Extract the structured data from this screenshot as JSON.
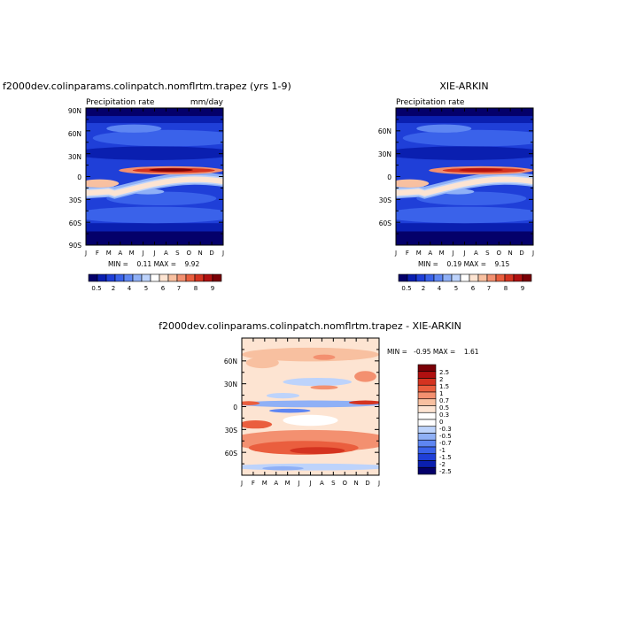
{
  "colors": {
    "abs_scale": [
      "#04006a",
      "#0a1fb0",
      "#1f3fd8",
      "#3a62ea",
      "#5e86f2",
      "#8fb0f6",
      "#bdd3fb",
      "#ffffff",
      "#fde4d2",
      "#f8c0a0",
      "#f39070",
      "#ea5e3e",
      "#d43320",
      "#b01010",
      "#7a0006"
    ],
    "diff_scale": [
      "#04006a",
      "#0a1fb0",
      "#1f3fd8",
      "#3a62ea",
      "#5e86f2",
      "#8fb0f6",
      "#bdd3fb",
      "#ffffff",
      "#ffffff",
      "#fde4d2",
      "#f8c0a0",
      "#f39070",
      "#ea5e3e",
      "#d43320",
      "#b01010",
      "#7a0006"
    ]
  },
  "month_labels": [
    "J",
    "F",
    "M",
    "A",
    "M",
    "J",
    "J",
    "A",
    "S",
    "O",
    "N",
    "D",
    "J"
  ],
  "panel_model": {
    "title": "f2000dev.colinparams.colinpatch.nomflrtm.trapez (yrs 1-9)",
    "left_label": "Precipitation rate",
    "right_label": "mm/day",
    "lat_labels": [
      "90N",
      "60N",
      "30N",
      "0",
      "30S",
      "60S",
      "90S"
    ],
    "min_max": "MIN =    0.11 MAX =    9.92",
    "colorbar_labels": [
      "0.5",
      "2",
      "4",
      "5",
      "6",
      "7",
      "8",
      "9"
    ]
  },
  "panel_obs": {
    "title": "XIE-ARKIN",
    "left_label": "Precipitation rate",
    "lat_labels": [
      "60N",
      "30N",
      "0",
      "30S",
      "60S"
    ],
    "min_max": "MIN =    0.19 MAX =    9.15",
    "colorbar_labels": [
      "0.5",
      "2",
      "4",
      "5",
      "6",
      "7",
      "8",
      "9"
    ]
  },
  "panel_diff": {
    "title": "f2000dev.colinparams.colinpatch.nomflrtm.trapez - XIE-ARKIN",
    "lat_labels": [
      "60N",
      "30N",
      "0",
      "30S",
      "60S"
    ],
    "min_max": "MIN =   -0.95 MAX =    1.61",
    "colorbar_labels": [
      "2.5",
      "2",
      "1.5",
      "1",
      "0.7",
      "0.5",
      "0.3",
      "0",
      "-0.3",
      "-0.5",
      "-0.7",
      "-1",
      "-1.5",
      "-2",
      "-2.5"
    ]
  },
  "chart_data": [
    {
      "type": "heatmap",
      "title": "f2000dev.colinparams.colinpatch.nomflrtm.trapez (yrs 1-9)",
      "subtitle": "Precipitation rate",
      "units": "mm/day",
      "x_ticks": [
        "J",
        "F",
        "M",
        "A",
        "M",
        "J",
        "J",
        "A",
        "S",
        "O",
        "N",
        "D",
        "J"
      ],
      "y_ticks": [
        "90N",
        "60N",
        "30N",
        "0",
        "30S",
        "60S",
        "90S"
      ],
      "ylim": [
        -90,
        90
      ],
      "min": 0.11,
      "max": 9.92,
      "color_levels": [
        0.5,
        2,
        4,
        5,
        6,
        7,
        8,
        9
      ]
    },
    {
      "type": "heatmap",
      "title": "XIE-ARKIN",
      "subtitle": "Precipitation rate",
      "x_ticks": [
        "J",
        "F",
        "M",
        "A",
        "M",
        "J",
        "J",
        "A",
        "S",
        "O",
        "N",
        "D",
        "J"
      ],
      "y_ticks": [
        "60N",
        "30N",
        "0",
        "30S",
        "60S"
      ],
      "min": 0.19,
      "max": 9.15,
      "color_levels": [
        0.5,
        2,
        4,
        5,
        6,
        7,
        8,
        9
      ]
    },
    {
      "type": "heatmap",
      "title": "f2000dev.colinparams.colinpatch.nomflrtm.trapez - XIE-ARKIN",
      "x_ticks": [
        "J",
        "F",
        "M",
        "A",
        "M",
        "J",
        "J",
        "A",
        "S",
        "O",
        "N",
        "D",
        "J"
      ],
      "y_ticks": [
        "60N",
        "30N",
        "0",
        "30S",
        "60S"
      ],
      "min": -0.95,
      "max": 1.61,
      "color_levels": [
        2.5,
        2,
        1.5,
        1,
        0.7,
        0.5,
        0.3,
        0,
        -0.3,
        -0.5,
        -0.7,
        -1,
        -1.5,
        -2,
        -2.5
      ]
    }
  ]
}
